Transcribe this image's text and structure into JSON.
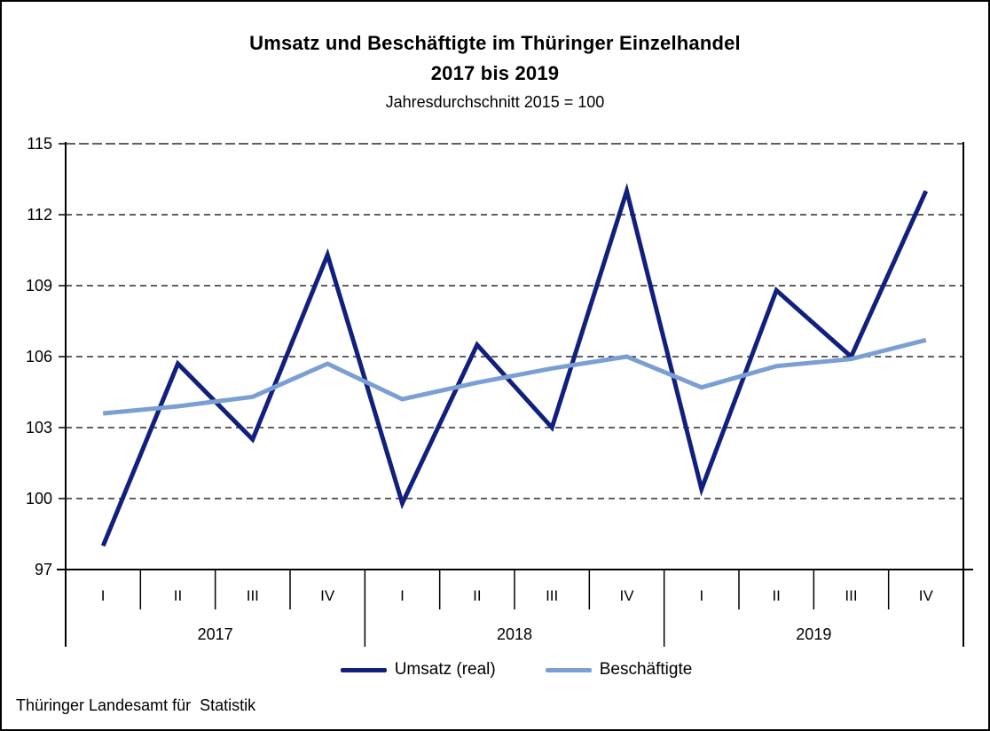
{
  "title": {
    "line1": "Umsatz und Beschäftigte im Thüringer Einzelhandel",
    "line2": "2017 bis 2019",
    "subtitle": "Jahresdurchschnitt 2015 = 100"
  },
  "footer": {
    "source": "Thüringer Landesamt für  Statistik"
  },
  "chart_data": {
    "type": "line",
    "title": "Umsatz und Beschäftigte im Thüringer Einzelhandel 2017 bis 2019",
    "subtitle": "Jahresdurchschnitt 2015 = 100",
    "x_quarter_labels": [
      "I",
      "II",
      "III",
      "IV",
      "I",
      "II",
      "III",
      "IV",
      "I",
      "II",
      "III",
      "IV"
    ],
    "year_groups": [
      {
        "label": "2017",
        "quarters": 4
      },
      {
        "label": "2018",
        "quarters": 4
      },
      {
        "label": "2019",
        "quarters": 4
      }
    ],
    "series": [
      {
        "name": "Umsatz (real)",
        "color": "#11207D",
        "values": [
          98.0,
          105.7,
          102.5,
          110.3,
          99.8,
          106.5,
          103.0,
          113.0,
          100.4,
          108.8,
          106.0,
          113.0
        ]
      },
      {
        "name": "Beschäftigte",
        "color": "#7C9FD3",
        "values": [
          103.6,
          103.9,
          104.3,
          105.7,
          104.2,
          104.9,
          105.5,
          106.0,
          104.7,
          105.6,
          105.9,
          106.7
        ]
      }
    ],
    "yticks": [
      97,
      100,
      103,
      106,
      109,
      112,
      115
    ],
    "ylim": [
      97,
      115
    ],
    "grid": "horizontal-dashed",
    "legend_position": "bottom-center",
    "axis_color": "#000000"
  }
}
